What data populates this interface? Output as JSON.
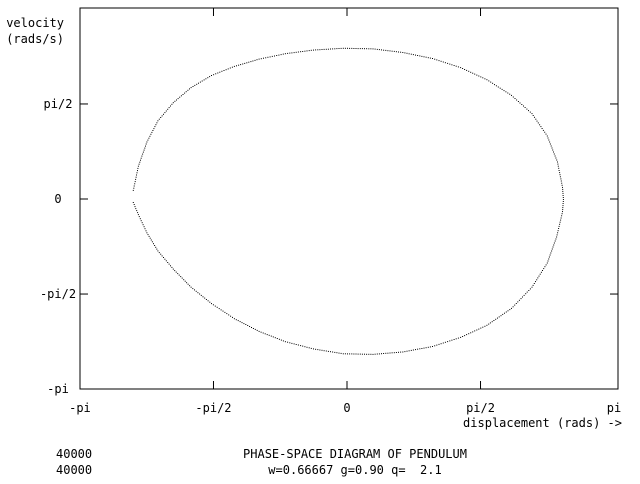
{
  "window": {
    "title": "PHASE-SPACE DIAGRAM OF PENDULUM"
  },
  "colors": {
    "background": "#ffffff",
    "ink": "#000000"
  },
  "footer": {
    "counter_1": "40000",
    "counter_2": "40000",
    "title": "PHASE-SPACE DIAGRAM OF PENDULUM",
    "params": "w=0.66667 g=0.90 q=  2.1"
  },
  "chart_data": {
    "type": "scatter",
    "title": "PHASE-SPACE DIAGRAM OF PENDULUM",
    "subtitle": "w=0.66667 g=0.90 q=  2.1",
    "xlabel": "displacement (rads) ->",
    "ylabel": [
      "velocity",
      "(rads/s)"
    ],
    "xlim": [
      -3.14159,
      3.14159
    ],
    "ylim": [
      -3.14159,
      3.14159
    ],
    "grid": false,
    "x_ticks": [
      {
        "value": -3.14159,
        "label": "-pi"
      },
      {
        "value": -1.5708,
        "label": "-pi/2"
      },
      {
        "value": 0,
        "label": "0"
      },
      {
        "value": 1.5708,
        "label": "pi/2"
      },
      {
        "value": 3.14159,
        "label": "pi"
      }
    ],
    "y_ticks": [
      {
        "value": -3.14159,
        "label": "-pi"
      },
      {
        "value": -1.5708,
        "label": "-pi/2"
      },
      {
        "value": 0,
        "label": "0"
      },
      {
        "value": 1.5708,
        "label": "pi/2"
      }
    ],
    "series": [
      {
        "style": "dotted closed orbit",
        "x": [
          -2.52,
          -2.46,
          -2.36,
          -2.23,
          -2.05,
          -1.84,
          -1.6,
          -1.33,
          -1.04,
          -0.73,
          -0.4,
          -0.05,
          0.3,
          0.65,
          1.0,
          1.33,
          1.64,
          1.93,
          2.17,
          2.35,
          2.47,
          2.53,
          2.54,
          2.53,
          2.46,
          2.35,
          2.17,
          1.93,
          1.64,
          1.33,
          1.0,
          0.65,
          0.3,
          -0.05,
          -0.4,
          -0.73,
          -1.04,
          -1.33,
          -1.6,
          -1.84,
          -2.05,
          -2.23,
          -2.36,
          -2.46,
          -2.52,
          -2.53
        ],
        "y": [
          0.15,
          0.55,
          0.95,
          1.3,
          1.6,
          1.85,
          2.05,
          2.2,
          2.32,
          2.41,
          2.47,
          2.5,
          2.49,
          2.43,
          2.33,
          2.18,
          1.98,
          1.72,
          1.42,
          1.05,
          0.62,
          0.2,
          0.0,
          -0.2,
          -0.62,
          -1.05,
          -1.45,
          -1.8,
          -2.08,
          -2.28,
          -2.43,
          -2.52,
          -2.56,
          -2.55,
          -2.47,
          -2.35,
          -2.18,
          -1.97,
          -1.72,
          -1.45,
          -1.15,
          -0.85,
          -0.55,
          -0.25,
          -0.05,
          0.0
        ]
      }
    ]
  }
}
